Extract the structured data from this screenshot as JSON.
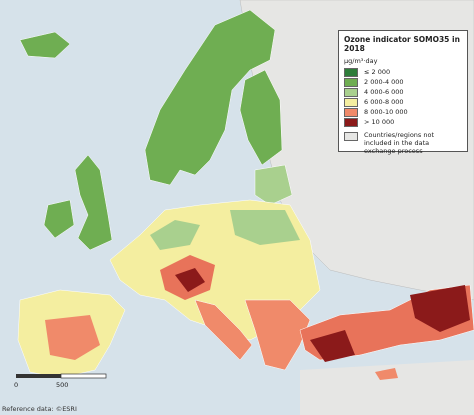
{
  "legend": {
    "title": "Ozone indicator SOMO35 in 2018",
    "unit": "μg/m³·day",
    "items": [
      {
        "label": "≤ 2 000",
        "color": "#2e7d3a"
      },
      {
        "label": "2 000-4 000",
        "color": "#6fae52"
      },
      {
        "label": "4 000-6 000",
        "color": "#a9d08e"
      },
      {
        "label": "6 000-8 000",
        "color": "#f4eea0"
      },
      {
        "label": "8 000-10 000",
        "color": "#f08a6a"
      },
      {
        "label": "> 10 000",
        "color": "#8b1a1a"
      }
    ],
    "not_included": "Countries/regions not included in the data exchange process"
  },
  "scale": [
    "0",
    "500"
  ],
  "footer": "Reference data: ©ESRI"
}
